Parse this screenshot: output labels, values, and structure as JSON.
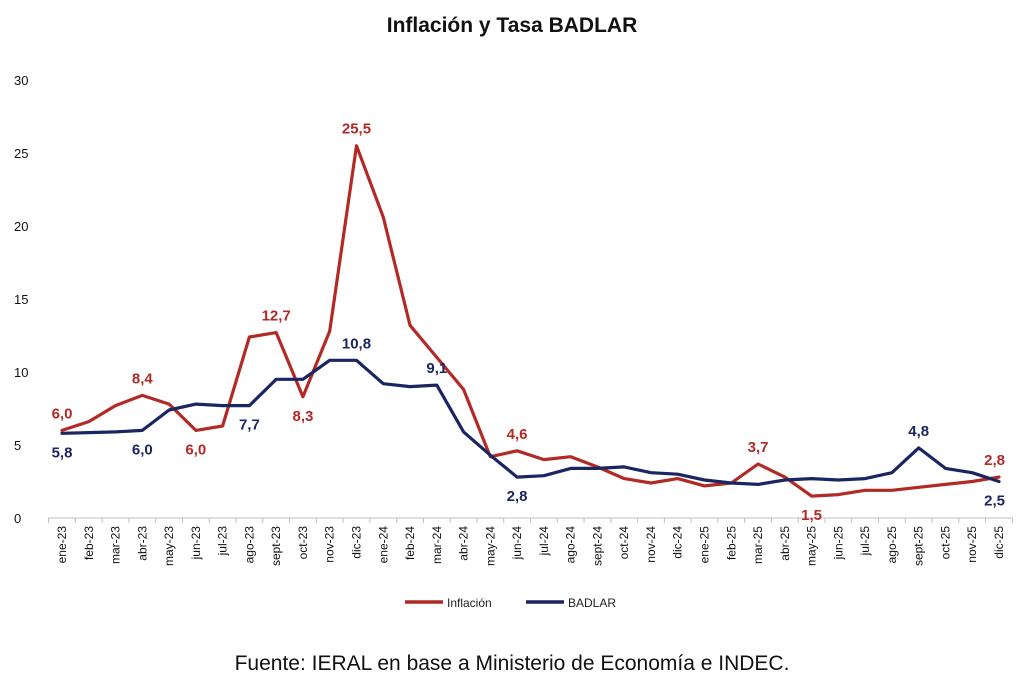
{
  "chart_data": {
    "type": "line",
    "title": "Inflación y Tasa BADLAR",
    "xlabel": "",
    "ylabel": "",
    "ylim": [
      0,
      30
    ],
    "yticks": [
      0,
      5,
      10,
      15,
      20,
      25,
      30
    ],
    "grid": false,
    "legend_position": "bottom",
    "categories": [
      "ene-23",
      "feb-23",
      "mar-23",
      "abr-23",
      "may-23",
      "jun-23",
      "jul-23",
      "ago-23",
      "sept-23",
      "oct-23",
      "nov-23",
      "dic-23",
      "ene-24",
      "feb-24",
      "mar-24",
      "abr-24",
      "may-24",
      "jun-24",
      "jul-24",
      "ago-24",
      "sept-24",
      "oct-24",
      "nov-24",
      "dic-24",
      "ene-25",
      "feb-25",
      "mar-25",
      "abr-25",
      "may-25",
      "jun-25",
      "jul-25",
      "ago-25",
      "sept-25",
      "oct-25",
      "nov-25",
      "dic-25"
    ],
    "series": [
      {
        "name": "Inflación",
        "color": "#b22a26",
        "values": [
          6.0,
          6.6,
          7.7,
          8.4,
          7.8,
          6.0,
          6.3,
          12.4,
          12.7,
          8.3,
          12.8,
          25.5,
          20.6,
          13.2,
          11.0,
          8.8,
          4.2,
          4.6,
          4.0,
          4.2,
          3.5,
          2.7,
          2.4,
          2.7,
          2.2,
          2.4,
          3.7,
          2.8,
          1.5,
          1.6,
          1.9,
          1.9,
          2.1,
          2.3,
          2.5,
          2.8
        ],
        "labels": [
          {
            "index": 0,
            "text": "6,0",
            "pos": "above"
          },
          {
            "index": 3,
            "text": "8,4",
            "pos": "above"
          },
          {
            "index": 5,
            "text": "6,0",
            "pos": "below"
          },
          {
            "index": 8,
            "text": "12,7",
            "pos": "above"
          },
          {
            "index": 9,
            "text": "8,3",
            "pos": "below"
          },
          {
            "index": 11,
            "text": "25,5",
            "pos": "above"
          },
          {
            "index": 17,
            "text": "4,6",
            "pos": "above"
          },
          {
            "index": 26,
            "text": "3,7",
            "pos": "above"
          },
          {
            "index": 28,
            "text": "1,5",
            "pos": "below"
          },
          {
            "index": 35,
            "text": "2,8",
            "pos": "above"
          }
        ]
      },
      {
        "name": "BADLAR",
        "color": "#1a2662",
        "values": [
          5.8,
          5.85,
          5.9,
          6.0,
          7.4,
          7.8,
          7.7,
          7.7,
          9.5,
          9.5,
          10.8,
          10.8,
          9.2,
          9.0,
          9.1,
          5.9,
          4.3,
          2.8,
          2.9,
          3.4,
          3.4,
          3.5,
          3.1,
          3.0,
          2.6,
          2.4,
          2.3,
          2.6,
          2.7,
          2.6,
          2.7,
          3.1,
          4.8,
          3.4,
          3.1,
          2.5
        ],
        "labels": [
          {
            "index": 0,
            "text": "5,8",
            "pos": "below"
          },
          {
            "index": 3,
            "text": "6,0",
            "pos": "below"
          },
          {
            "index": 7,
            "text": "7,7",
            "pos": "below"
          },
          {
            "index": 11,
            "text": "10,8",
            "pos": "above"
          },
          {
            "index": 14,
            "text": "9,1",
            "pos": "above"
          },
          {
            "index": 17,
            "text": "2,8",
            "pos": "below"
          },
          {
            "index": 32,
            "text": "4,8",
            "pos": "above"
          },
          {
            "index": 35,
            "text": "2,5",
            "pos": "below"
          }
        ]
      }
    ]
  },
  "caption": "Fuente: IERAL en base a Ministerio de Economía e INDEC."
}
